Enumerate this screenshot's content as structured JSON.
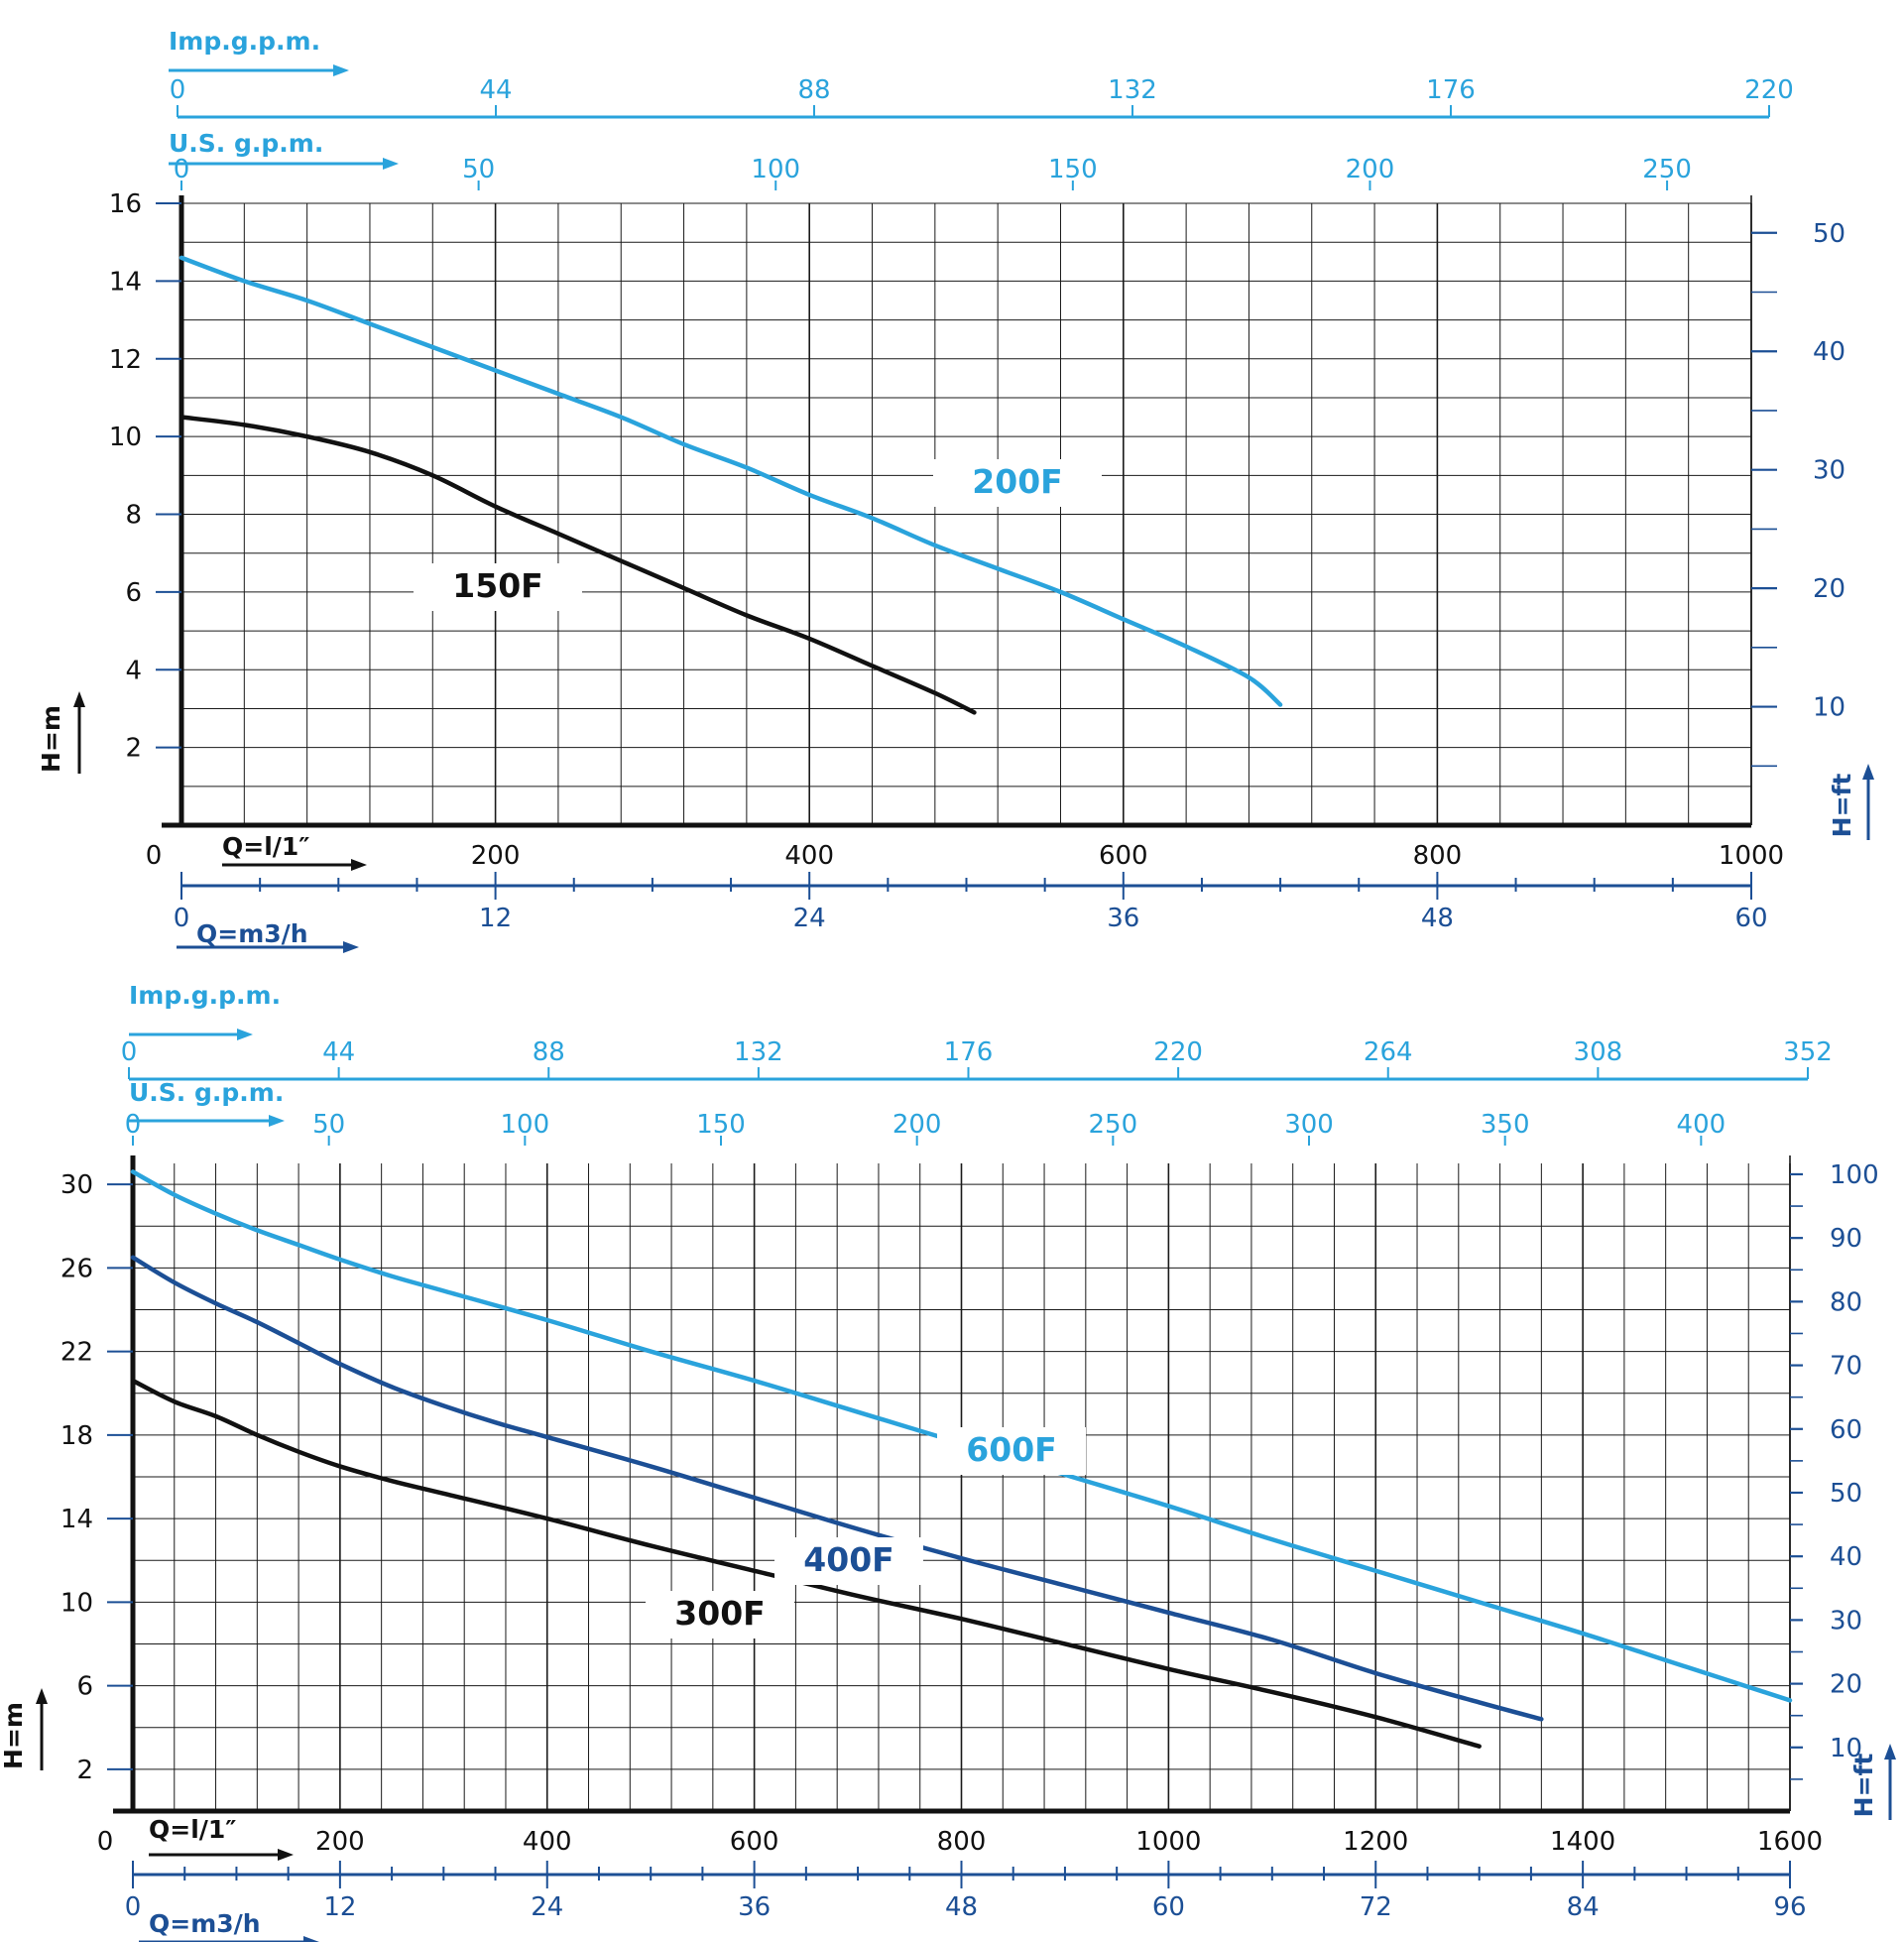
{
  "colors": {
    "black": "#111111",
    "light_blue": "#2aa3dc",
    "dark_blue": "#1c4f95",
    "grid": "#1a1a1a"
  },
  "chart_data": [
    {
      "id": "chart-1",
      "type": "line",
      "title": "",
      "xlabel": "Q=l/1″",
      "ylabel": "H=m",
      "xlim": [
        0,
        1000
      ],
      "ylim": [
        0,
        16
      ],
      "x_ticks": [
        0,
        200,
        400,
        600,
        800,
        1000
      ],
      "y_ticks": [
        2,
        4,
        6,
        8,
        10,
        12,
        14,
        16
      ],
      "y_minor_step": 1,
      "grid": true,
      "x_grid_step": 40,
      "secondary_axes": {
        "imp_gpm": {
          "label": "Imp.g.p.m.",
          "ticks": [
            0,
            44,
            88,
            132,
            176,
            220
          ]
        },
        "us_gpm": {
          "label": "U.S. g.p.m.",
          "ticks": [
            0,
            50,
            100,
            150,
            200,
            250
          ]
        },
        "m3h": {
          "label": "Q=m3/h",
          "ticks": [
            0,
            12,
            24,
            36,
            48,
            60
          ]
        },
        "ft": {
          "label": "H=ft",
          "ticks": [
            10,
            20,
            30,
            40,
            50
          ]
        }
      },
      "series": [
        {
          "name": "150F",
          "label": "150F",
          "color": "#111111",
          "x": [
            0,
            40,
            80,
            120,
            160,
            200,
            240,
            280,
            320,
            360,
            400,
            440,
            480,
            505
          ],
          "y": [
            10.5,
            10.3,
            10.0,
            9.6,
            9.0,
            8.2,
            7.5,
            6.8,
            6.1,
            5.4,
            4.8,
            4.1,
            3.4,
            2.9
          ]
        },
        {
          "name": "200F",
          "label": "200F",
          "color": "#2aa3dc",
          "x": [
            0,
            40,
            80,
            120,
            160,
            200,
            240,
            280,
            320,
            360,
            400,
            440,
            480,
            520,
            560,
            600,
            640,
            680,
            700
          ],
          "y": [
            14.6,
            14.0,
            13.5,
            12.9,
            12.3,
            11.7,
            11.1,
            10.5,
            9.8,
            9.2,
            8.5,
            7.9,
            7.2,
            6.6,
            6.0,
            5.3,
            4.6,
            3.8,
            3.1
          ]
        }
      ]
    },
    {
      "id": "chart-2",
      "type": "line",
      "title": "",
      "xlabel": "Q=l/1″",
      "ylabel": "H=m",
      "xlim": [
        0,
        1600
      ],
      "ylim": [
        0,
        31
      ],
      "x_ticks": [
        0,
        200,
        400,
        600,
        800,
        1000,
        1200,
        1400,
        1600
      ],
      "y_ticks": [
        2,
        6,
        10,
        14,
        18,
        22,
        26,
        30
      ],
      "y_minor_step": 2,
      "grid": true,
      "x_grid_step": 40,
      "secondary_axes": {
        "imp_gpm": {
          "label": "Imp.g.p.m.",
          "ticks": [
            0,
            44,
            88,
            132,
            176,
            220,
            264,
            308,
            352
          ]
        },
        "us_gpm": {
          "label": "U.S. g.p.m.",
          "ticks": [
            0,
            50,
            100,
            150,
            200,
            250,
            300,
            350,
            400
          ]
        },
        "m3h": {
          "label": "Q=m3/h",
          "ticks": [
            0,
            12,
            24,
            36,
            48,
            60,
            72,
            84,
            96
          ]
        },
        "ft": {
          "label": "H=ft",
          "ticks": [
            10,
            20,
            30,
            40,
            50,
            60,
            70,
            80,
            90,
            100
          ]
        }
      },
      "series": [
        {
          "name": "300F",
          "label": "300F",
          "color": "#111111",
          "x": [
            0,
            40,
            80,
            120,
            160,
            200,
            250,
            300,
            400,
            500,
            600,
            700,
            800,
            900,
            1000,
            1100,
            1200,
            1300
          ],
          "y": [
            20.6,
            19.6,
            18.9,
            18.0,
            17.2,
            16.5,
            15.8,
            15.2,
            14.0,
            12.7,
            11.5,
            10.3,
            9.2,
            8.0,
            6.8,
            5.7,
            4.5,
            3.1
          ]
        },
        {
          "name": "400F",
          "label": "400F",
          "color": "#1c4f95",
          "x": [
            0,
            40,
            80,
            120,
            160,
            200,
            250,
            300,
            350,
            400,
            500,
            600,
            700,
            800,
            900,
            1000,
            1100,
            1200,
            1300,
            1360
          ],
          "y": [
            26.5,
            25.3,
            24.3,
            23.4,
            22.4,
            21.4,
            20.3,
            19.4,
            18.6,
            17.9,
            16.5,
            15.0,
            13.5,
            12.1,
            10.8,
            9.5,
            8.2,
            6.6,
            5.2,
            4.4
          ]
        },
        {
          "name": "600F",
          "label": "600F",
          "color": "#2aa3dc",
          "x": [
            0,
            40,
            80,
            120,
            160,
            200,
            250,
            300,
            400,
            500,
            600,
            700,
            800,
            900,
            1000,
            1100,
            1200,
            1300,
            1400,
            1500,
            1600
          ],
          "y": [
            30.6,
            29.5,
            28.6,
            27.8,
            27.1,
            26.4,
            25.6,
            24.9,
            23.5,
            22.0,
            20.6,
            19.1,
            17.6,
            16.1,
            14.6,
            13.0,
            11.5,
            10.0,
            8.5,
            6.9,
            5.3
          ]
        }
      ]
    }
  ]
}
